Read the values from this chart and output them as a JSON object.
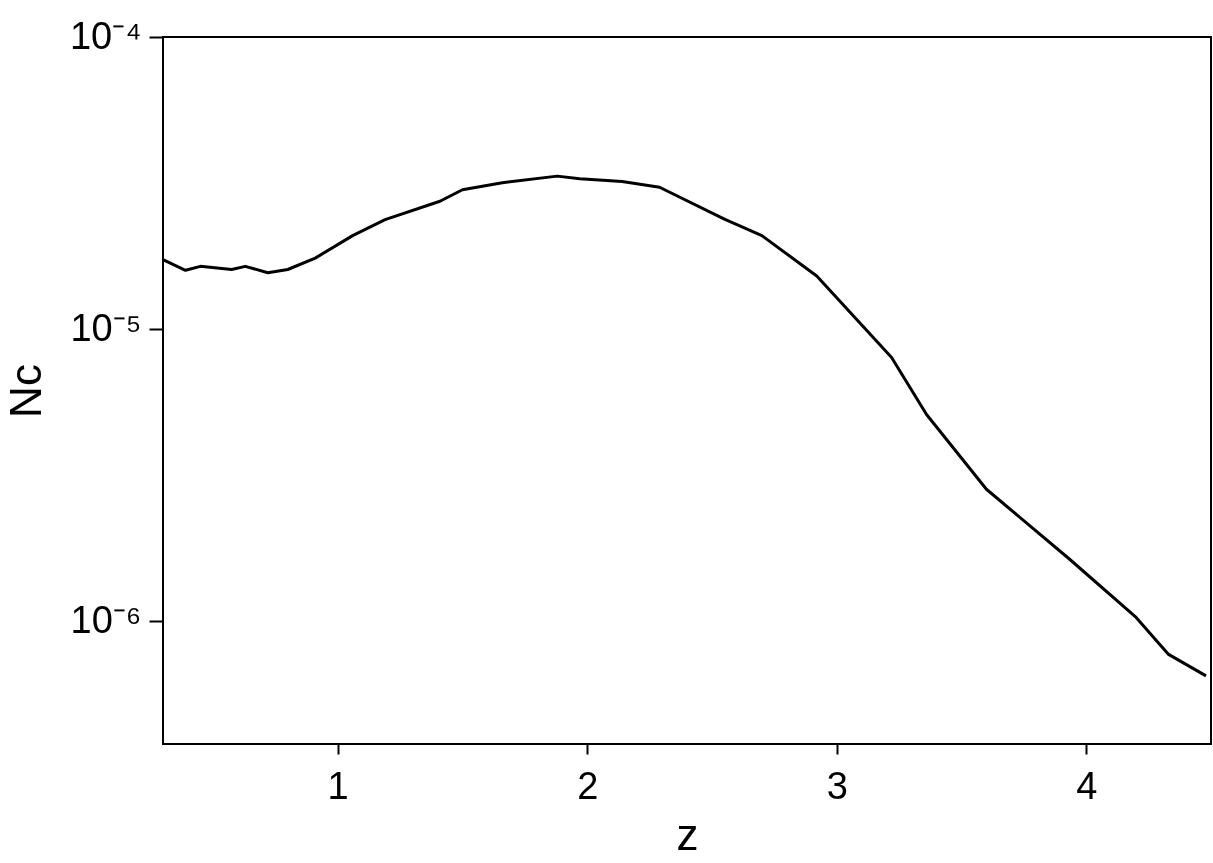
{
  "chart_data": {
    "type": "line",
    "xlabel": "z",
    "ylabel": "Nc",
    "log": "y",
    "grid": false,
    "marker": "none",
    "line_style": "solid",
    "xlim": [
      0.3,
      4.5
    ],
    "xticks": [
      1,
      2,
      3,
      4
    ],
    "ylim": [
      3.8e-07,
      0.0001
    ],
    "yticks": [
      {
        "value": 1e-06,
        "label": "10⁻⁶"
      },
      {
        "value": 1e-05,
        "label": "10⁻⁵"
      },
      {
        "value": 0.0001,
        "label": "10⁻⁴"
      }
    ],
    "x": [
      0.3,
      0.39,
      0.45,
      0.575,
      0.63,
      0.72,
      0.8,
      0.91,
      1.06,
      1.19,
      1.41,
      1.5,
      1.66,
      1.88,
      1.97,
      2.14,
      2.29,
      2.55,
      2.7,
      2.92,
      3.22,
      3.36,
      3.6,
      3.93,
      4.2,
      4.33,
      4.48
    ],
    "series": [
      {
        "color": "#000000",
        "values": [
          1.73e-05,
          1.59e-05,
          1.64e-05,
          1.6e-05,
          1.64e-05,
          1.56e-05,
          1.6e-05,
          1.75e-05,
          2.09e-05,
          2.37e-05,
          2.74e-05,
          3e-05,
          3.17e-05,
          3.34e-05,
          3.27e-05,
          3.2e-05,
          3.06e-05,
          2.38e-05,
          2.09e-05,
          1.52e-05,
          8e-06,
          5.1e-06,
          2.83e-06,
          1.64e-06,
          1.03e-06,
          7.7e-07,
          6.5e-07
        ]
      }
    ]
  }
}
